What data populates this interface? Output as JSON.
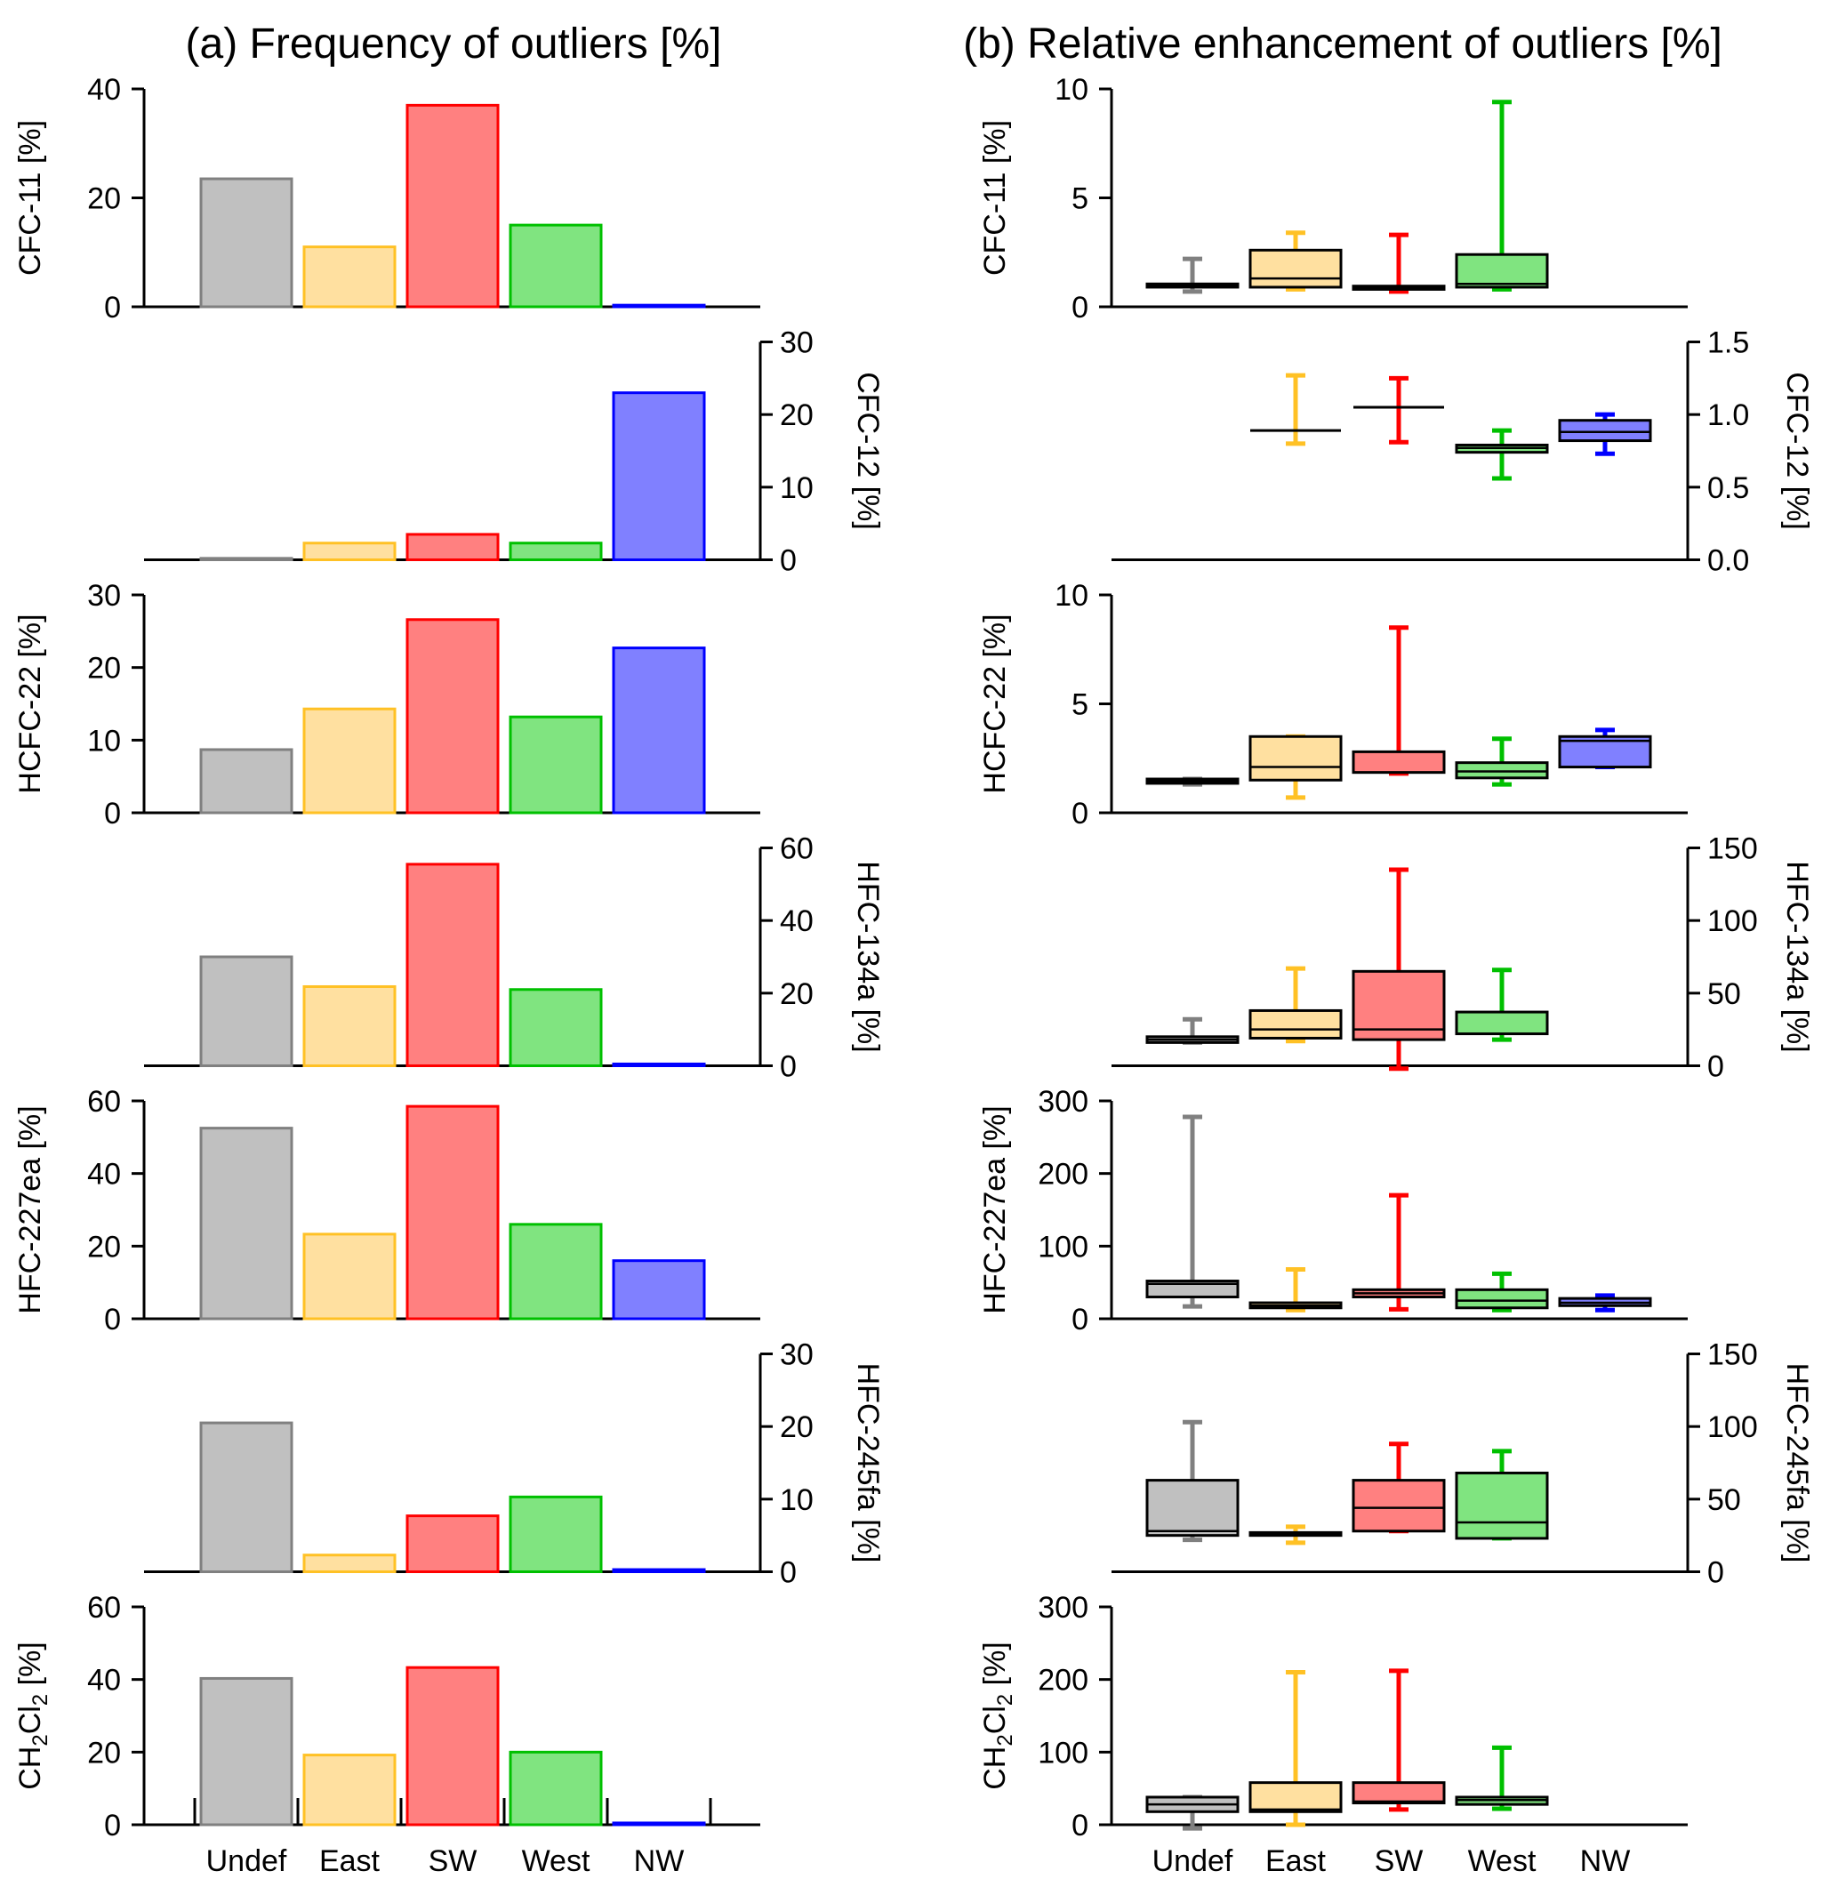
{
  "panel_titles": {
    "a": "(a) Frequency of outliers [%]",
    "b": "(b) Relative enhancement of outliers [%]"
  },
  "colors": {
    "Undef": {
      "edge": "#808080",
      "fill": "#c0c0c0"
    },
    "East": {
      "edge": "#ffc125",
      "fill": "#ffe0a0"
    },
    "SW": {
      "edge": "#ff0000",
      "fill": "#ff8080"
    },
    "West": {
      "edge": "#00c000",
      "fill": "#80e480"
    },
    "NW": {
      "edge": "#0000ff",
      "fill": "#8080ff"
    }
  },
  "chart_data": [
    {
      "type": "bar",
      "title": "(a) Frequency of outliers [%]",
      "categories": [
        "Undef",
        "East",
        "SW",
        "West",
        "NW"
      ],
      "panels": [
        {
          "ylabel": "CFC-11 [%]",
          "axis_side": "left",
          "ylim": [
            0,
            40
          ],
          "ticks": [
            0,
            20,
            40
          ],
          "values": [
            23.5,
            11,
            37,
            15,
            0.3
          ]
        },
        {
          "ylabel": "CFC-12 [%]",
          "axis_side": "right",
          "ylim": [
            0,
            30
          ],
          "ticks": [
            0,
            10,
            20,
            30
          ],
          "values": [
            0.2,
            2.3,
            3.5,
            2.3,
            23
          ]
        },
        {
          "ylabel": "HCFC-22 [%]",
          "axis_side": "left",
          "ylim": [
            0,
            30
          ],
          "ticks": [
            0,
            10,
            20,
            30
          ],
          "values": [
            8.7,
            14.3,
            26.6,
            13.2,
            22.7
          ]
        },
        {
          "ylabel": "HFC-134a [%]",
          "axis_side": "right",
          "ylim": [
            0,
            60
          ],
          "ticks": [
            0,
            20,
            40,
            60
          ],
          "values": [
            30,
            21.8,
            55.5,
            21,
            0.5
          ]
        },
        {
          "ylabel": "HFC-227ea [%]",
          "axis_side": "left",
          "ylim": [
            0,
            60
          ],
          "ticks": [
            0,
            20,
            40,
            60
          ],
          "values": [
            52.5,
            23.3,
            58.5,
            26,
            16
          ]
        },
        {
          "ylabel": "HFC-245fa [%]",
          "axis_side": "right",
          "ylim": [
            0,
            30
          ],
          "ticks": [
            0,
            10,
            20,
            30
          ],
          "values": [
            20.5,
            2.3,
            7.7,
            10.3,
            0.3
          ]
        },
        {
          "ylabel_parts": [
            "CH",
            "2",
            "Cl",
            "2",
            " [%]"
          ],
          "axis_side": "left",
          "ylim": [
            0,
            60
          ],
          "ticks": [
            0,
            20,
            40,
            60
          ],
          "values": [
            40.3,
            19.2,
            43.3,
            20,
            0.5
          ]
        }
      ]
    },
    {
      "type": "box",
      "title": "(b) Relative enhancement of outliers [%]",
      "categories": [
        "Undef",
        "East",
        "SW",
        "West",
        "NW"
      ],
      "panels": [
        {
          "ylabel": "CFC-11 [%]",
          "axis_side": "left",
          "ylim": [
            0,
            10
          ],
          "ticks": [
            0,
            5,
            10
          ],
          "boxes": [
            [
              0.7,
              0.9,
              1.0,
              1.05,
              2.2
            ],
            [
              0.8,
              0.9,
              1.3,
              2.6,
              3.4
            ],
            [
              0.7,
              0.8,
              0.9,
              0.95,
              3.3
            ],
            [
              0.8,
              0.9,
              1.05,
              2.4,
              9.4
            ],
            null
          ]
        },
        {
          "ylabel": "CFC-12 [%]",
          "axis_side": "right",
          "ylim": [
            0,
            1.5
          ],
          "ticks": [
            "0.0",
            "0.5",
            "1.0",
            "1.5"
          ],
          "boxes": [
            null,
            [
              0.8,
              0.89,
              0.89,
              0.89,
              1.27
            ],
            [
              0.81,
              1.05,
              1.05,
              1.05,
              1.25
            ],
            [
              0.56,
              0.74,
              0.77,
              0.79,
              0.89
            ],
            [
              0.73,
              0.82,
              0.88,
              0.96,
              1.0
            ]
          ]
        },
        {
          "ylabel": "HCFC-22 [%]",
          "axis_side": "left",
          "ylim": [
            0,
            10
          ],
          "ticks": [
            0,
            5,
            10
          ],
          "boxes": [
            [
              1.3,
              1.35,
              1.45,
              1.55,
              1.55
            ],
            [
              0.7,
              1.5,
              2.1,
              3.5,
              3.5
            ],
            [
              1.8,
              1.85,
              1.85,
              2.8,
              8.5
            ],
            [
              1.3,
              1.6,
              1.9,
              2.3,
              3.4
            ],
            [
              2.1,
              2.1,
              3.3,
              3.5,
              3.8
            ]
          ]
        },
        {
          "ylabel": "HFC-134a [%]",
          "axis_side": "right",
          "ylim": [
            0,
            150
          ],
          "ticks": [
            0,
            50,
            100,
            150
          ],
          "boxes": [
            [
              16,
              16,
              18,
              20,
              32
            ],
            [
              17,
              19,
              25,
              38,
              67
            ],
            [
              -2,
              18,
              25,
              65,
              135
            ],
            [
              18,
              22,
              22,
              37,
              66
            ],
            null
          ]
        },
        {
          "ylabel": "HFC-227ea [%]",
          "axis_side": "left",
          "ylim": [
            0,
            300
          ],
          "ticks": [
            0,
            100,
            200,
            300
          ],
          "boxes": [
            [
              17,
              30,
              48,
              52,
              278
            ],
            [
              12,
              15,
              18,
              22,
              68
            ],
            [
              13,
              30,
              35,
              40,
              170
            ],
            [
              12,
              15,
              25,
              40,
              62
            ],
            [
              12,
              18,
              22,
              28,
              32
            ]
          ]
        },
        {
          "ylabel": "HFC-245fa [%]",
          "axis_side": "right",
          "ylim": [
            0,
            150
          ],
          "ticks": [
            0,
            50,
            100,
            150
          ],
          "boxes": [
            [
              22,
              25,
              28,
              63,
              103
            ],
            [
              20,
              25,
              26,
              27,
              31
            ],
            [
              28,
              28,
              44,
              63,
              88
            ],
            [
              23,
              23,
              34,
              68,
              83
            ],
            null
          ]
        },
        {
          "ylabel_parts": [
            "CH",
            "2",
            "Cl",
            "2",
            " [%]"
          ],
          "axis_side": "left",
          "ylim": [
            0,
            300
          ],
          "ticks": [
            0,
            100,
            200,
            300
          ],
          "boxes": [
            [
              -5,
              18,
              28,
              38,
              38
            ],
            [
              0,
              18,
              21,
              58,
              210
            ],
            [
              21,
              30,
              32,
              58,
              212
            ],
            [
              22,
              28,
              34,
              38,
              106
            ],
            null
          ]
        }
      ]
    }
  ]
}
